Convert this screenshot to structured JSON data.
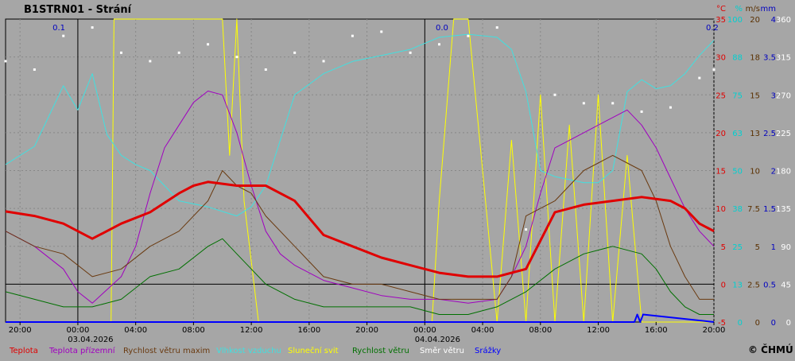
{
  "chart_data": {
    "type": "line",
    "title": "B1STRN01 - Strání",
    "copyright": "© ČHMÚ",
    "x_start": "02.04.2026 19:00",
    "x_end": "04.04.2026 20:00",
    "x_tick_labels": [
      "20:00",
      "00:00",
      "04:00",
      "08:00",
      "12:00",
      "16:00",
      "20:00",
      "00:00",
      "04:00",
      "08:00",
      "12:00",
      "16:00",
      "20:00"
    ],
    "x_date_labels": [
      {
        "time": "00:00",
        "date": "03.04.2026"
      },
      {
        "time": "00:00",
        "date": "04.04.2026"
      }
    ],
    "precip_labels": [
      "0.1",
      "0.0",
      "0.2"
    ],
    "axes": [
      {
        "unit": "°C",
        "color": "#e00000",
        "ticks": [
          "35",
          "30",
          "25",
          "20",
          "15",
          "10",
          "5",
          "0",
          "-5"
        ],
        "range": [
          -5,
          35
        ]
      },
      {
        "unit": "%",
        "color": "#00d0d0",
        "ticks": [
          "100",
          "88",
          "75",
          "63",
          "50",
          "38",
          "25",
          "13",
          "0"
        ],
        "range": [
          0,
          100
        ]
      },
      {
        "unit": "m/s",
        "color": "#5a3000",
        "ticks": [
          "20",
          "18",
          "15",
          "13",
          "10",
          "7.5",
          "5",
          "2.5",
          "0"
        ],
        "range": [
          0,
          20
        ]
      },
      {
        "unit": "mm",
        "color": "#0000c0",
        "ticks": [
          "4",
          "3.5",
          "3",
          "2.5",
          "2",
          "1.5",
          "1",
          "0.5",
          "0"
        ],
        "range": [
          0,
          4
        ]
      },
      {
        "unit": "",
        "color": "#ffffff",
        "ticks": [
          "360",
          "315",
          "270",
          "225",
          "180",
          "135",
          "90",
          "45",
          "0"
        ],
        "range": [
          0,
          360
        ]
      }
    ],
    "legend": [
      {
        "name": "Teplota",
        "color": "#e00000"
      },
      {
        "name": "Teplota přízemní",
        "color": "#a000c0"
      },
      {
        "name": "Rychlost větru maxim",
        "color": "#6a3a10"
      },
      {
        "name": "Vlhkost vzduchu",
        "color": "#40e0e0"
      },
      {
        "name": "Sluneční svit",
        "color": "#ffff00"
      },
      {
        "name": "Rychlost větru",
        "color": "#007000"
      },
      {
        "name": "Směr větru",
        "color": "#ffffff"
      },
      {
        "name": "Srážky",
        "color": "#0000ff"
      }
    ],
    "series": [
      {
        "name": "Teplota",
        "unit": "°C",
        "t": [
          0,
          2,
          4,
          6,
          8,
          10,
          12,
          13,
          14,
          16,
          18,
          20,
          22,
          24,
          26,
          28,
          30,
          32,
          34,
          36,
          38,
          40,
          42,
          44,
          46,
          47,
          48,
          49
        ],
        "values": [
          9.6,
          9,
          8,
          6,
          8,
          9.5,
          12,
          13,
          13.5,
          13,
          13,
          11,
          6.5,
          5,
          3.5,
          2.5,
          1.5,
          1,
          1,
          2,
          9.5,
          10.5,
          11,
          11.5,
          11,
          10,
          8,
          7
        ]
      },
      {
        "name": "Teplota přízemní",
        "unit": "°C",
        "t": [
          0,
          2,
          4,
          5,
          6,
          8,
          9,
          10,
          11,
          12,
          13,
          14,
          15,
          16,
          17,
          18,
          19,
          20,
          22,
          24,
          26,
          28,
          30,
          32,
          34,
          35,
          36,
          37,
          38,
          39,
          40,
          41,
          42,
          43,
          44,
          45,
          46,
          47,
          48,
          49
        ],
        "values": [
          7,
          5,
          2,
          -1,
          -2.5,
          1,
          5,
          12,
          18,
          21,
          24,
          25.5,
          25,
          20,
          13,
          7,
          4,
          2.5,
          0.5,
          -0.5,
          -1.5,
          -2,
          -2,
          -2.5,
          -2,
          1,
          5,
          12,
          18,
          19,
          20,
          21,
          22,
          23,
          21,
          18,
          14,
          10,
          7,
          5
        ]
      },
      {
        "name": "Rychlost větru maxim",
        "unit": "m/s",
        "t": [
          0,
          2,
          4,
          6,
          8,
          10,
          12,
          14,
          15,
          16,
          17,
          18,
          20,
          22,
          24,
          26,
          28,
          30,
          32,
          34,
          35,
          36,
          37,
          38,
          39,
          40,
          41,
          42,
          43,
          44,
          45,
          46,
          47,
          48,
          49
        ],
        "values": [
          6,
          5,
          4.5,
          3,
          3.5,
          5,
          6,
          8,
          10,
          9,
          8.5,
          7,
          5,
          3,
          2.5,
          2.5,
          2,
          1.5,
          1.5,
          1.5,
          3,
          7,
          7.5,
          8,
          9,
          10,
          10.5,
          11,
          10.5,
          10,
          8,
          5,
          3,
          1.5,
          1.5
        ]
      },
      {
        "name": "Vlhkost vzduchu",
        "unit": "%",
        "t": [
          0,
          2,
          4,
          5,
          6,
          7,
          8,
          9,
          10,
          12,
          14,
          16,
          17,
          18,
          20,
          22,
          24,
          26,
          28,
          30,
          32,
          34,
          35,
          36,
          37,
          38,
          39,
          40,
          41,
          42,
          43,
          44,
          45,
          46,
          47,
          48,
          49
        ],
        "values": [
          52,
          58,
          78,
          70,
          82,
          62,
          55,
          52,
          50,
          40,
          38,
          35,
          38,
          45,
          75,
          82,
          86,
          88,
          90,
          94,
          95,
          94,
          90,
          76,
          50,
          48,
          47,
          46,
          46,
          50,
          76,
          80,
          77,
          78,
          82,
          88,
          93
        ]
      },
      {
        "name": "Sluneční svit",
        "unit": "",
        "t": [
          0,
          2,
          4,
          6,
          7.3,
          7.5,
          8,
          10,
          12,
          14,
          15,
          15.5,
          16,
          16.5,
          17,
          17.5,
          18,
          20,
          22,
          24,
          26,
          28,
          29.5,
          30,
          30.5,
          31,
          32,
          34,
          35,
          36,
          37,
          38,
          39,
          40,
          41,
          42,
          43,
          44,
          45,
          46,
          47,
          48,
          49
        ],
        "values": [
          0,
          0,
          0,
          0,
          0,
          100,
          100,
          100,
          100,
          100,
          100,
          55,
          100,
          40,
          20,
          0,
          0,
          0,
          0,
          0,
          0,
          0,
          0,
          40,
          70,
          100,
          100,
          0,
          60,
          0,
          75,
          0,
          65,
          0,
          75,
          0,
          55,
          0,
          0,
          0,
          0,
          0,
          0
        ]
      },
      {
        "name": "Rychlost větru",
        "unit": "m/s",
        "t": [
          0,
          2,
          4,
          6,
          8,
          10,
          12,
          14,
          15,
          16,
          17,
          18,
          20,
          22,
          24,
          26,
          28,
          30,
          32,
          34,
          36,
          38,
          40,
          42,
          44,
          45,
          46,
          47,
          48,
          49
        ],
        "values": [
          2,
          1.5,
          1,
          1,
          1.5,
          3,
          3.5,
          5,
          5.5,
          4.5,
          3.5,
          2.5,
          1.5,
          1,
          1,
          1,
          1,
          0.5,
          0.5,
          1,
          2,
          3.5,
          4.5,
          5,
          4.5,
          3.5,
          2,
          1,
          0.5,
          0.5
        ]
      },
      {
        "name": "Směr větru",
        "unit": "°",
        "t": [
          0,
          2,
          4,
          6,
          8,
          10,
          12,
          14,
          16,
          18,
          20,
          22,
          24,
          26,
          28,
          30,
          32,
          34,
          36,
          38,
          40,
          42,
          44,
          46,
          48,
          49
        ],
        "values": [
          310,
          300,
          340,
          350,
          320,
          310,
          320,
          330,
          315,
          300,
          320,
          310,
          340,
          345,
          320,
          330,
          340,
          350,
          110,
          270,
          260,
          260,
          250,
          255,
          290,
          300
        ]
      },
      {
        "name": "Srážky",
        "unit": "mm",
        "t": [
          0,
          43.5,
          43.7,
          43.9,
          44.1,
          49
        ],
        "values": [
          0,
          0,
          0.1,
          0,
          0.1,
          0
        ]
      }
    ]
  }
}
